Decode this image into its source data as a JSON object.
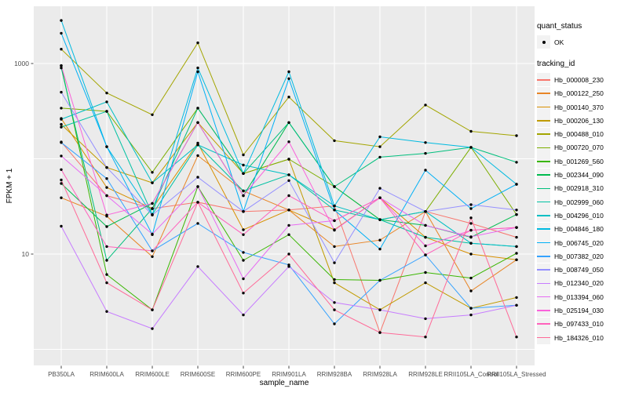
{
  "figure": {
    "panel_background": "#EBEBEB",
    "gridline_color": "#FFFFFF",
    "axis_text_color": "#4D4D4D",
    "axis_tick_color": "#333333",
    "point_color": "#000000",
    "y_tick_labels": [
      "1000",
      "10"
    ]
  },
  "legend": {
    "quant_title": "quant_status",
    "quant_items": [
      {
        "label": "OK",
        "symbol": "point"
      }
    ],
    "tracking_title": "tracking_id"
  },
  "chart_data": {
    "type": "line",
    "title": "",
    "xlabel": "sample_name",
    "ylabel": "FPKM + 1",
    "y_scale": "log10",
    "ylim": [
      1,
      4000
    ],
    "y_major_gridlines": [
      1,
      10,
      100,
      1000
    ],
    "y_labeled_ticks": [
      10,
      1000
    ],
    "grid": true,
    "legend_position": "right",
    "x_categories": [
      "PB350LA",
      "RRIM600LA",
      "RRIM600LE",
      "RRIM600SE",
      "RRIM600PE",
      "RRIM901LA",
      "RRIM928BA",
      "RRIM928LA",
      "RRIM928LE",
      "RRII105LA_Control",
      "RRII105LA_Stressed"
    ],
    "series": [
      {
        "name": "Hb_000008_230",
        "color": "#F8766D",
        "values": [
          150,
          41,
          30,
          35,
          28,
          29,
          32,
          1.5,
          28,
          21,
          15
        ]
      },
      {
        "name": "Hb_000122_250",
        "color": "#E88526",
        "values": [
          39,
          25,
          9.4,
          108,
          46,
          29,
          12,
          14,
          28,
          4.1,
          8.7
        ]
      },
      {
        "name": "Hb_000140_370",
        "color": "#D89000",
        "values": [
          265,
          50,
          30,
          146,
          18,
          29,
          18,
          39,
          15,
          10,
          8.7
        ]
      },
      {
        "name": "Hb_000206_130",
        "color": "#C09B00",
        "values": [
          230,
          81,
          56,
          240,
          70,
          99,
          5,
          2.6,
          5,
          2.7,
          3.5
        ]
      },
      {
        "name": "Hb_000488_010",
        "color": "#A3A500",
        "values": [
          1415,
          490,
          290,
          1650,
          110,
          445,
          155,
          134,
          367,
          194,
          175
        ]
      },
      {
        "name": "Hb_000720_070",
        "color": "#7CAE00",
        "values": [
          340,
          315,
          72,
          340,
          70,
          99,
          51,
          23,
          28,
          132,
          26
        ]
      },
      {
        "name": "Hb_001269_560",
        "color": "#39B600",
        "values": [
          950,
          6.1,
          2.6,
          51,
          8.6,
          16,
          5.4,
          5.3,
          6.4,
          5.6,
          10.2
        ]
      },
      {
        "name": "Hb_002344_090",
        "color": "#00BB4E",
        "values": [
          55,
          19.4,
          34,
          240,
          41,
          240,
          51,
          23,
          20,
          15,
          26
        ]
      },
      {
        "name": "Hb_002918_310",
        "color": "#00BF7D",
        "values": [
          900,
          8.6,
          30,
          340,
          70,
          240,
          51,
          104,
          114,
          132,
          92
        ]
      },
      {
        "name": "Hb_002999_060",
        "color": "#00C1A3",
        "values": [
          215,
          315,
          26,
          140,
          46,
          68,
          29,
          23,
          15,
          13,
          12
        ]
      },
      {
        "name": "Hb_004296_010",
        "color": "#00BFC4",
        "values": [
          260,
          396,
          56,
          140,
          86,
          68,
          32,
          23,
          28,
          13,
          12
        ]
      },
      {
        "name": "Hb_004846_180",
        "color": "#00BAE0",
        "values": [
          2830,
          134,
          26,
          900,
          70,
          820,
          32,
          170,
          148,
          132,
          54
        ]
      },
      {
        "name": "Hb_006745_020",
        "color": "#00B0F6",
        "values": [
          2080,
          134,
          16,
          820,
          28,
          694,
          29,
          11.3,
          76,
          30,
          54
        ]
      },
      {
        "name": "Hb_007382_020",
        "color": "#35A2FF",
        "values": [
          148,
          62,
          10.8,
          21,
          10.4,
          7.7,
          1.85,
          5.3,
          9.8,
          2.7,
          2.9
        ]
      },
      {
        "name": "Hb_008749_050",
        "color": "#9590FF",
        "values": [
          500,
          81,
          25.7,
          64,
          28,
          59,
          8.1,
          49,
          28,
          33,
          29
        ]
      },
      {
        "name": "Hb_012340_020",
        "color": "#C77CFF",
        "values": [
          19.6,
          2.5,
          1.65,
          7.4,
          2.3,
          7.4,
          3.1,
          2.6,
          2.1,
          2.3,
          2.9
        ]
      },
      {
        "name": "Hb_013394_060",
        "color": "#E76BF3",
        "values": [
          107,
          41,
          16.2,
          51,
          5.5,
          20,
          22.4,
          39,
          20,
          15.2,
          19
        ]
      },
      {
        "name": "Hb_025194_030",
        "color": "#FA62DB",
        "values": [
          950,
          25.7,
          34,
          240,
          41,
          151,
          17.8,
          39,
          12.2,
          17.8,
          19
        ]
      },
      {
        "name": "Hb_097433_010",
        "color": "#FF62BC",
        "values": [
          77,
          12,
          10.8,
          35,
          16,
          41,
          22.4,
          39,
          9.8,
          17.8,
          19
        ]
      },
      {
        "name": "Hb_184326_010",
        "color": "#FF6A98",
        "values": [
          60,
          5,
          2.6,
          35,
          3.9,
          10,
          2.6,
          1.5,
          1.35,
          24,
          1.35
        ]
      }
    ]
  }
}
